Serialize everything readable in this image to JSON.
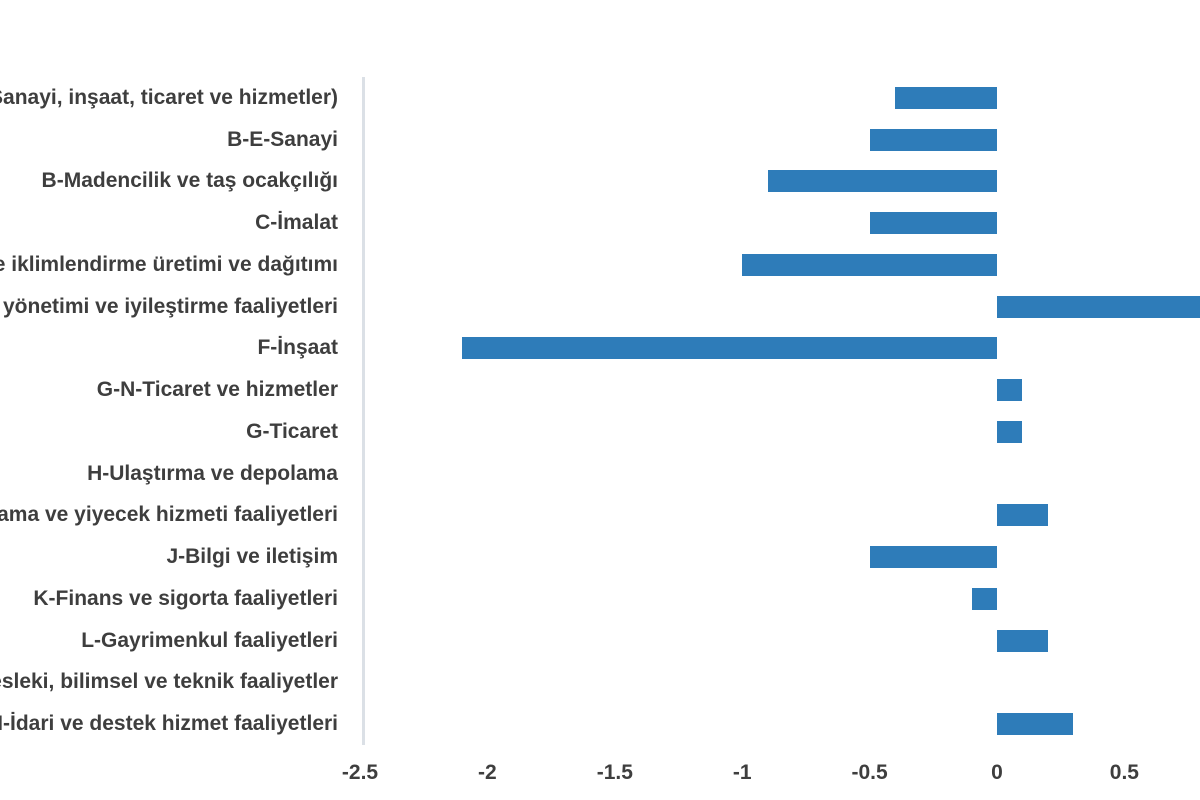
{
  "chart": {
    "background": "#ffffff"
  },
  "chart_data": {
    "type": "bar",
    "orientation": "horizontal",
    "title": "",
    "xlabel": "",
    "ylabel": "",
    "grid": false,
    "legend": "none",
    "bar_color": "#2e7cb9",
    "label_color": "#3e3e3e",
    "axis_line_color": "#dbe0e6",
    "xlim": [
      -2.5,
      0.8
    ],
    "categories": [
      "Toplam (Sanayi, inşaat, ticaret ve hizmetler)",
      "B-E-Sanayi",
      "B-Madencilik ve taş ocakçılığı",
      "C-İmalat",
      "D-Elektrik, gaz, buhar ve iklimlendirme üretimi ve dağıtımı",
      "E-Su temini; kanalizasyon, atık yönetimi ve iyileştirme faaliyetleri",
      "F-İnşaat",
      "G-N-Ticaret ve hizmetler",
      "G-Ticaret",
      "H-Ulaştırma ve depolama",
      "I-Konaklama ve yiyecek hizmeti faaliyetleri",
      "J-Bilgi ve iletişim",
      "K-Finans ve sigorta faaliyetleri",
      "L-Gayrimenkul faaliyetleri",
      "M-Mesleki, bilimsel ve teknik faaliyetler",
      "N-İdari ve destek hizmet faaliyetleri"
    ],
    "values": [
      -0.4,
      -0.5,
      -0.9,
      -0.5,
      -1.0,
      0.8,
      -2.1,
      0.1,
      0.1,
      0.0,
      0.2,
      -0.5,
      -0.1,
      0.2,
      0.0,
      0.3
    ],
    "x_ticks": {
      "values": [
        -2.5,
        -2,
        -1.5,
        -1,
        -0.5,
        0,
        0.5
      ],
      "labels": [
        "-2.5",
        "-2",
        "-1.5",
        "-1",
        "-0.5",
        "0",
        "0.5"
      ]
    },
    "notes": {
      "clipped_bar_category": "E-Su temini; kanalizasyon, atık yönetimi ve iyileştirme faaliyetleri",
      "clipped_bar_visible_value": 0.8,
      "left_labels_clipped_by_image_edge": true
    }
  }
}
